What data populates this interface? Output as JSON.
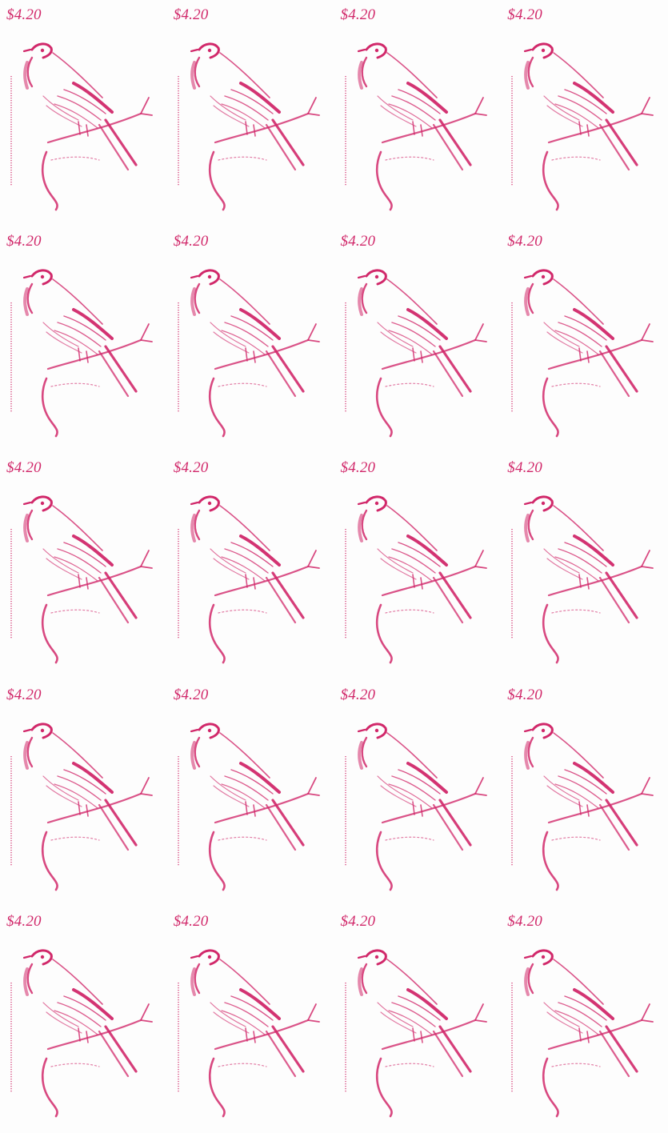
{
  "sheet": {
    "ink_color": "#d1286a",
    "paper_color": "#fdfdfd",
    "stamp_price": "$4.20",
    "rows": 5,
    "columns": 4,
    "stamp_side_caption_note": "vertical microprint caption, illegible"
  },
  "stamps": [
    {
      "price": "$4.20"
    },
    {
      "price": "$4.20"
    },
    {
      "price": "$4.20"
    },
    {
      "price": "$4.20"
    },
    {
      "price": "$4.20"
    },
    {
      "price": "$4.20"
    },
    {
      "price": "$4.20"
    },
    {
      "price": "$4.20"
    },
    {
      "price": "$4.20"
    },
    {
      "price": "$4.20"
    },
    {
      "price": "$4.20"
    },
    {
      "price": "$4.20"
    },
    {
      "price": "$4.20"
    },
    {
      "price": "$4.20"
    },
    {
      "price": "$4.20"
    },
    {
      "price": "$4.20"
    },
    {
      "price": "$4.20"
    },
    {
      "price": "$4.20"
    },
    {
      "price": "$4.20"
    },
    {
      "price": "$4.20"
    }
  ]
}
